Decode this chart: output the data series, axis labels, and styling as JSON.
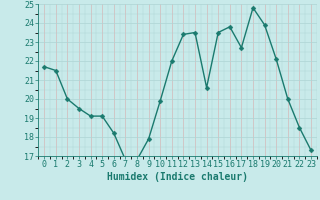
{
  "x": [
    0,
    1,
    2,
    3,
    4,
    5,
    6,
    7,
    8,
    9,
    10,
    11,
    12,
    13,
    14,
    15,
    16,
    17,
    18,
    19,
    20,
    21,
    22,
    23
  ],
  "y": [
    21.7,
    21.5,
    20.0,
    19.5,
    19.1,
    19.1,
    18.2,
    16.8,
    16.8,
    17.9,
    19.9,
    22.0,
    23.4,
    23.5,
    20.6,
    23.5,
    23.8,
    22.7,
    24.8,
    23.9,
    22.1,
    20.0,
    18.5,
    17.3
  ],
  "line_color": "#1a7a6e",
  "marker": "D",
  "marker_size": 2.5,
  "bg_color": "#c8eaea",
  "grid_minor_color": "#aed4d4",
  "grid_major_color": "#d4b8b8",
  "xlim": [
    -0.5,
    23.5
  ],
  "ylim": [
    17,
    25
  ],
  "yticks": [
    17,
    18,
    19,
    20,
    21,
    22,
    23,
    24,
    25
  ],
  "xticks": [
    0,
    1,
    2,
    3,
    4,
    5,
    6,
    7,
    8,
    9,
    10,
    11,
    12,
    13,
    14,
    15,
    16,
    17,
    18,
    19,
    20,
    21,
    22,
    23
  ],
  "xlabel": "Humidex (Indice chaleur)",
  "xlabel_fontsize": 7,
  "tick_fontsize": 6,
  "linewidth": 1.0
}
